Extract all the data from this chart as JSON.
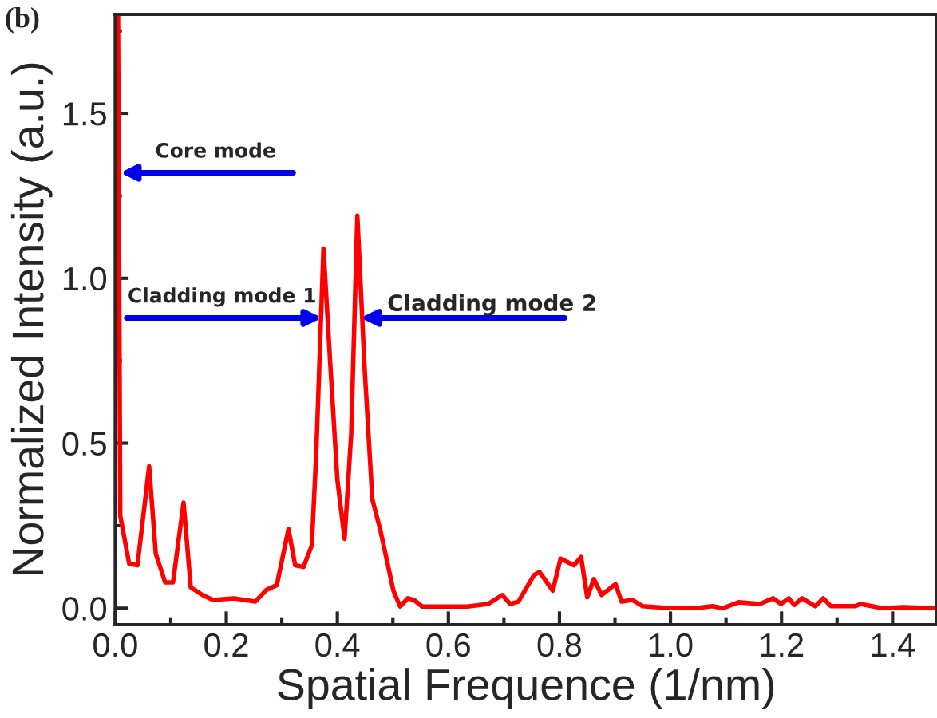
{
  "chart_data": {
    "type": "line",
    "xlabel": "Spatial Frequence (1/nm)",
    "ylabel": "Normalized Intensity (a.u.)",
    "annotations": [
      "(b)",
      {
        "text": "Core mode",
        "x": 0.009,
        "y": 1.32
      },
      {
        "text": "Cladding mode 1",
        "x": 0.372,
        "y": 0.88
      },
      {
        "text": "Cladding mode 2",
        "x": 0.442,
        "y": 0.88
      }
    ],
    "series": [
      {
        "color": "#ff0000",
        "x": [
          0.005,
          0.009,
          0.025,
          0.04,
          0.061,
          0.073,
          0.09,
          0.104,
          0.123,
          0.136,
          0.157,
          0.176,
          0.214,
          0.252,
          0.272,
          0.291,
          0.312,
          0.324,
          0.339,
          0.354,
          0.362,
          0.375,
          0.388,
          0.4,
          0.413,
          0.425,
          0.436,
          0.449,
          0.463,
          0.477,
          0.501,
          0.513,
          0.527,
          0.538,
          0.553,
          0.634,
          0.672,
          0.697,
          0.711,
          0.726,
          0.754,
          0.764,
          0.788,
          0.802,
          0.826,
          0.839,
          0.85,
          0.862,
          0.876,
          0.901,
          0.912,
          0.931,
          0.95,
          0.998,
          1.046,
          1.075,
          1.094,
          1.123,
          1.161,
          1.185,
          1.199,
          1.213,
          1.223,
          1.237,
          1.261,
          1.275,
          1.289,
          1.333,
          1.342,
          1.381,
          1.419,
          1.476
        ],
        "values": [
          1.8,
          0.28,
          0.135,
          0.13,
          0.43,
          0.165,
          0.078,
          0.078,
          0.32,
          0.063,
          0.04,
          0.025,
          0.03,
          0.02,
          0.055,
          0.07,
          0.24,
          0.13,
          0.125,
          0.19,
          0.47,
          1.09,
          0.72,
          0.39,
          0.21,
          0.53,
          1.19,
          0.73,
          0.33,
          0.24,
          0.053,
          0.005,
          0.03,
          0.025,
          0.005,
          0.005,
          0.013,
          0.04,
          0.013,
          0.02,
          0.1,
          0.11,
          0.053,
          0.15,
          0.13,
          0.155,
          0.033,
          0.088,
          0.04,
          0.073,
          0.02,
          0.025,
          0.006,
          0,
          0,
          0.006,
          0,
          0.018,
          0.013,
          0.03,
          0.013,
          0.03,
          0.01,
          0.03,
          0.006,
          0.03,
          0.006,
          0.006,
          0.013,
          0,
          0.003,
          0
        ]
      }
    ],
    "xlim": [
      0,
      1.48
    ],
    "ylim": [
      -0.05,
      1.8
    ],
    "xticks": [
      {
        "value": 0,
        "label": "0.0"
      },
      0.2,
      0.4,
      0.6,
      0.8,
      {
        "value": 1,
        "label": "1.0"
      },
      1.2,
      1.4
    ],
    "yticks": [
      {
        "value": 0,
        "label": "0.0"
      },
      0.5,
      {
        "value": 1,
        "label": "1.0"
      },
      1.5
    ],
    "grid": false,
    "legend": false,
    "marker": "none",
    "line_style": "solid"
  }
}
